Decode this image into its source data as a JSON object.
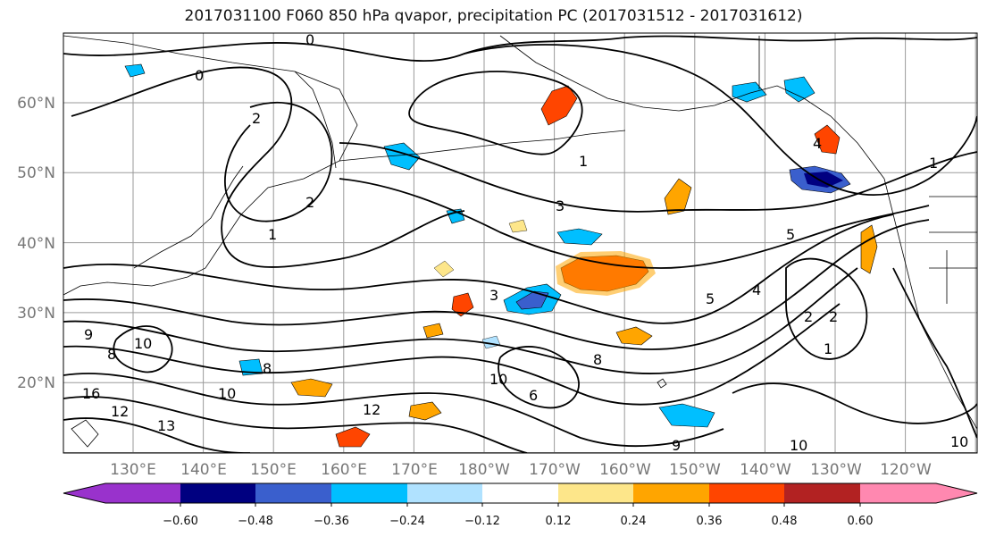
{
  "title": "2017031100 F060 850 hPa qvapor, precipitation PC (2017031512 - 2017031612)",
  "map": {
    "lat_labels": [
      "60°N",
      "50°N",
      "40°N",
      "30°N",
      "20°N"
    ],
    "lon_labels": [
      "130°E",
      "140°E",
      "150°E",
      "160°E",
      "170°E",
      "180°W",
      "170°W",
      "160°W",
      "150°W",
      "140°W",
      "130°W",
      "120°W"
    ],
    "contour_labels": [
      "0",
      "0",
      "2",
      "1",
      "1",
      "2",
      "3",
      "2",
      "3",
      "4",
      "5",
      "5",
      "8",
      "8",
      "9",
      "10",
      "10",
      "10",
      "12",
      "13",
      "12",
      "16",
      "1",
      "2",
      "4",
      "6",
      "8",
      "10",
      "1",
      "9",
      "10"
    ]
  },
  "colorbar": {
    "colors": [
      "#9932cc",
      "#000080",
      "#3a5fcd",
      "#00bfff",
      "#b0e2ff",
      "#ffffff",
      "#fde68a",
      "#ffa500",
      "#ff4500",
      "#b22222",
      "#ff88b0"
    ],
    "tick_labels": [
      "−0.60",
      "−0.48",
      "−0.36",
      "−0.24",
      "−0.12",
      "0.12",
      "0.24",
      "0.36",
      "0.48",
      "0.60"
    ]
  },
  "colors": {
    "contour": "#000000",
    "coast": "#000000",
    "grid": "#9a9a9a"
  }
}
